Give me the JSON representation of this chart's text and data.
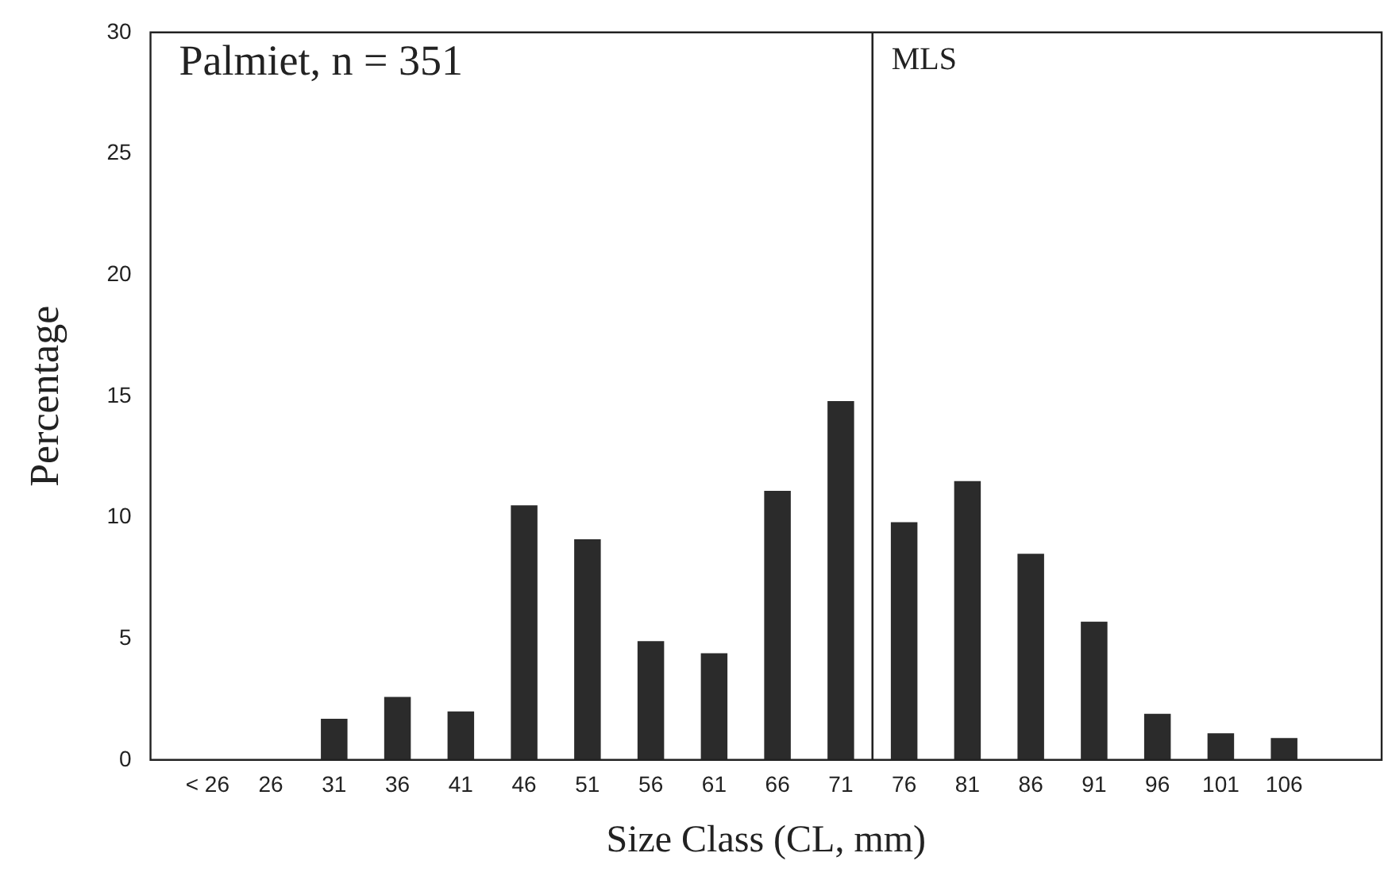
{
  "chart_data": {
    "type": "bar",
    "title": "Palmiet, n = 351",
    "xlabel": "Size Class (CL, mm)",
    "ylabel": "Percentage",
    "x": [
      21,
      26,
      31,
      36,
      41,
      46,
      51,
      56,
      61,
      66,
      71,
      76,
      81,
      86,
      91,
      96,
      101,
      106
    ],
    "values": [
      0,
      0,
      1.7,
      2.6,
      2.0,
      10.5,
      9.1,
      4.9,
      4.4,
      11.1,
      14.8,
      9.8,
      11.5,
      8.5,
      5.7,
      1.9,
      1.1,
      0.9
    ],
    "color": "#2b2b2b",
    "xlim": [
      16.5,
      113.7
    ],
    "xticks": [
      {
        "value": 21,
        "label": "< 26"
      },
      26,
      31,
      36,
      41,
      46,
      51,
      56,
      61,
      66,
      71,
      76,
      81,
      86,
      91,
      96,
      101,
      106
    ],
    "ylim": [
      0,
      30
    ],
    "yticks": [
      0,
      5,
      10,
      15,
      20,
      25,
      30
    ],
    "grid": false,
    "legend": false,
    "ref_lines": [
      {
        "axis": "x",
        "value": 73.5,
        "label": "MLS",
        "color": "#222222"
      }
    ]
  }
}
